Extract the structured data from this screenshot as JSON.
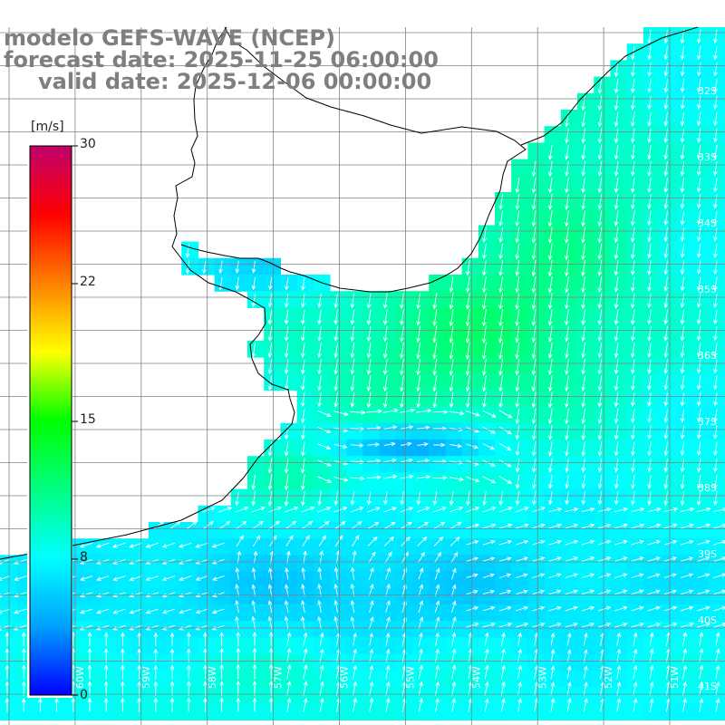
{
  "title": {
    "line1": "modelo GEFS-WAVE (NCEP)",
    "line2": "forecast date: 2025-11-25 06:00:00",
    "line3": "valid date: 2025-12-06 00:00:00"
  },
  "colorbar": {
    "units": "[m/s]",
    "ticks": [
      "30",
      "22",
      "15",
      "8",
      "0"
    ],
    "colors": [
      "#0000ff",
      "#00a0ff",
      "#00ffff",
      "#00ff80",
      "#00ff00",
      "#ffff00",
      "#ff8000",
      "#ff0000",
      "#c0006b"
    ]
  },
  "map": {
    "lat_labels": [
      "32S",
      "33S",
      "34S",
      "35S",
      "36S",
      "37S",
      "38S",
      "39S",
      "40S",
      "41S"
    ],
    "lon_labels": [
      "60W",
      "59W",
      "58W",
      "57W",
      "56W",
      "55W",
      "54W",
      "53W",
      "52W",
      "51W"
    ],
    "land_color": "#ffffff",
    "coast_color": "#000000",
    "grid_color": "#808080",
    "arrow_color": "#ffffff"
  }
}
